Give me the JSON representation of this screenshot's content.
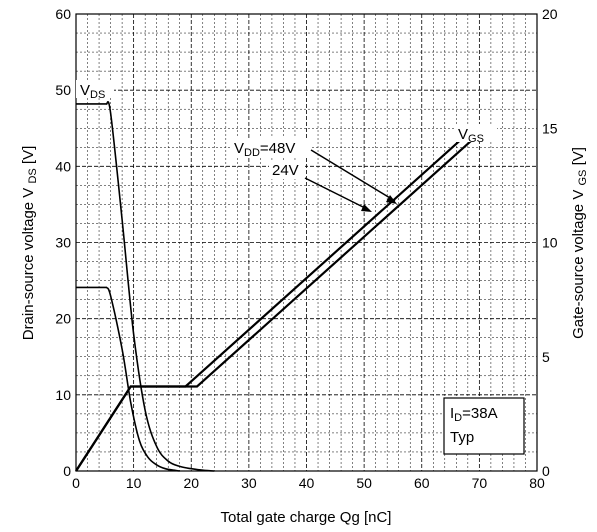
{
  "chart_data": {
    "type": "line",
    "xlabel": "Total gate charge   Qg  [nC]",
    "ylabel_left": "Drain-source voltage  V DS [V]",
    "ylabel_right": "Gate-source voltage  V GS [V]",
    "xlim": [
      0,
      80
    ],
    "ylim_left": [
      0,
      60
    ],
    "ylim_right": [
      0,
      20
    ],
    "x_ticks": [
      0,
      10,
      20,
      30,
      40,
      50,
      60,
      70,
      80
    ],
    "y_left_ticks": [
      0,
      10,
      20,
      30,
      40,
      50,
      60
    ],
    "y_right_ticks": [
      0,
      5,
      10,
      15,
      20
    ],
    "grid": true,
    "annotations": {
      "vds_label": "VDS",
      "vgs_label": "VGS",
      "vdd48_label": "VDD=48V",
      "vdd24_label": "24V",
      "id_label": "ID=38A",
      "typ_label": "Typ"
    },
    "series": [
      {
        "name": "VDS (VDD=48V)",
        "axis": "left",
        "x": [
          0,
          5.3,
          6.0,
          8.0,
          10.0,
          12.0,
          14.0,
          16.0,
          18.0,
          20.0,
          22.0,
          24.0
        ],
        "y": [
          48.2,
          48.2,
          47.0,
          33.0,
          18.0,
          8.0,
          3.2,
          1.3,
          0.6,
          0.3,
          0.1,
          0.0
        ]
      },
      {
        "name": "VDS (VDD=24V)",
        "axis": "left",
        "x": [
          0,
          5.3,
          6.0,
          8.0,
          9.5,
          11.0,
          12.5,
          14.0,
          15.5,
          17.0,
          18.0
        ],
        "y": [
          24.1,
          24.1,
          23.0,
          16.0,
          9.0,
          4.0,
          1.8,
          0.8,
          0.3,
          0.1,
          0.0
        ]
      },
      {
        "name": "VGS (VDD=48V)",
        "axis": "right",
        "x": [
          0,
          9.5,
          21.0,
          71.0
        ],
        "y": [
          0,
          3.7,
          3.7,
          15.0
        ]
      },
      {
        "name": "VGS (VDD=24V)",
        "axis": "right",
        "x": [
          0,
          9.5,
          19.0,
          69.0
        ],
        "y": [
          0,
          3.7,
          3.7,
          15.0
        ]
      }
    ]
  }
}
